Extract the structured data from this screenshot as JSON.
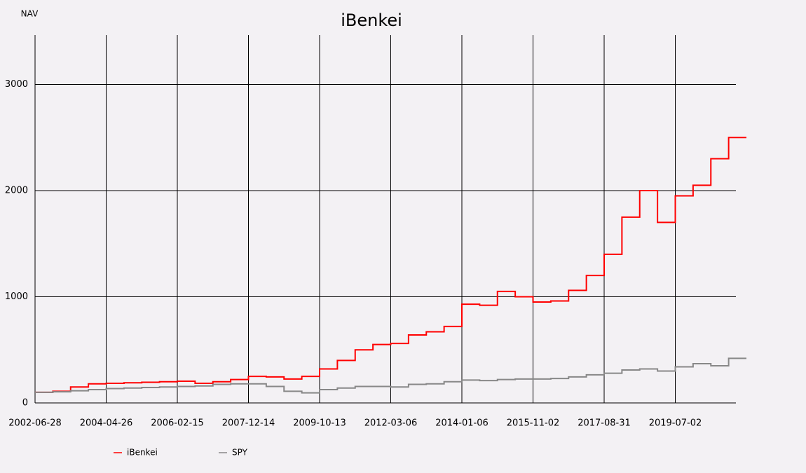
{
  "chart_data": {
    "type": "line",
    "title": "iBenkei",
    "ylabel": "NAV",
    "categories": [
      "2002-06-28",
      null,
      null,
      null,
      "2004-04-26",
      null,
      null,
      null,
      "2006-02-15",
      null,
      null,
      null,
      "2007-12-14",
      null,
      null,
      null,
      "2009-10-13",
      null,
      null,
      null,
      "2012-03-06",
      null,
      null,
      null,
      "2014-01-06",
      null,
      null,
      null,
      "2015-11-02",
      null,
      null,
      null,
      "2017-08-31",
      null,
      null,
      null,
      "2019-07-02",
      null,
      null,
      null
    ],
    "series": [
      {
        "name": "iBenkei",
        "color": "#ff0000",
        "values": [
          100,
          110,
          150,
          180,
          185,
          190,
          195,
          200,
          205,
          185,
          200,
          220,
          250,
          245,
          225,
          250,
          320,
          400,
          500,
          550,
          560,
          640,
          670,
          720,
          930,
          920,
          1050,
          1000,
          950,
          960,
          1060,
          1200,
          1400,
          1750,
          2000,
          1700,
          1950,
          2050,
          2300,
          2500
        ]
      },
      {
        "name": "SPY",
        "color": "#888888",
        "values": [
          100,
          105,
          115,
          125,
          135,
          140,
          145,
          150,
          155,
          160,
          175,
          180,
          180,
          155,
          110,
          95,
          125,
          140,
          155,
          155,
          150,
          175,
          180,
          200,
          215,
          210,
          220,
          225,
          225,
          230,
          245,
          265,
          280,
          310,
          320,
          300,
          340,
          370,
          350,
          420
        ]
      }
    ],
    "ylim": [
      0,
      3465
    ],
    "yticks": [
      0,
      1000,
      2000,
      3000
    ],
    "grid": true,
    "step": true
  }
}
